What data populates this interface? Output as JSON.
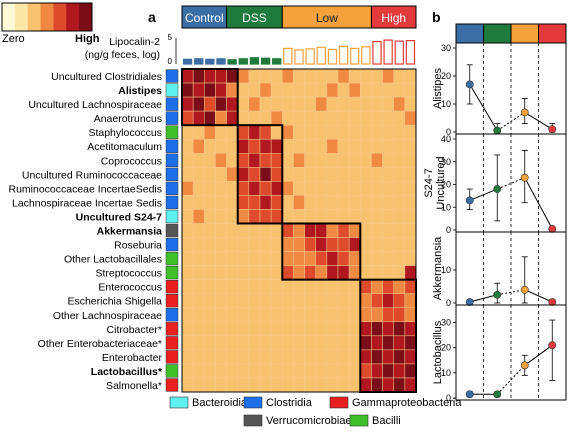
{
  "panel_labels": {
    "a": "a",
    "b": "b"
  },
  "scale": {
    "low_label": "Zero",
    "high_label": "High",
    "colors": [
      "#fffbd8",
      "#fde7a8",
      "#f9c26e",
      "#f08a42",
      "#de4a2c",
      "#b0171f",
      "#7a0d17"
    ]
  },
  "groups": [
    {
      "label": "Control",
      "color": "#3a6ea5",
      "text_color": "#ffffff",
      "n": 4
    },
    {
      "label": "DSS",
      "color": "#1f7a3c",
      "text_color": "#ffffff",
      "n": 5
    },
    {
      "label": "Low",
      "color": "#f5a23c",
      "text_color": "#222222",
      "n": 8
    },
    {
      "label": "High",
      "color": "#e33b3b",
      "text_color": "#ffffff",
      "n": 4
    }
  ],
  "lipocalin": {
    "label_line1": "Lipocalin-2",
    "label_line2": "(ng/g feces, log)",
    "ticks": [
      "0",
      "5"
    ],
    "values": [
      0.9,
      1.0,
      0.9,
      1.0,
      0.8,
      1.0,
      1.2,
      1.1,
      1.0,
      3.0,
      2.7,
      2.9,
      3.2,
      2.8,
      3.4,
      3.0,
      3.3,
      4.3,
      4.6,
      4.4,
      4.5
    ],
    "max": 5
  },
  "taxa_colors": {
    "Bacteroidia": "#5ff0f0",
    "Clostridia": "#1d6fe8",
    "Gammaproteobacteria": "#e8201f",
    "Verrucomicrobiae": "#555555",
    "Bacilli": "#3fbf2a"
  },
  "rows": [
    {
      "name": "Uncultured Clostridiales",
      "bold": false,
      "class": "Clostridia"
    },
    {
      "name": "Alistipes",
      "bold": true,
      "class": "Bacteroidia"
    },
    {
      "name": "Uncultured Lachnospiraceae",
      "bold": false,
      "class": "Clostridia"
    },
    {
      "name": "Anaerotruncus",
      "bold": false,
      "class": "Clostridia"
    },
    {
      "name": "Staphylococcus",
      "bold": false,
      "class": "Bacilli"
    },
    {
      "name": "Acetitomaculum",
      "bold": false,
      "class": "Clostridia"
    },
    {
      "name": "Coprococcus",
      "bold": false,
      "class": "Clostridia"
    },
    {
      "name": "Uncultured Ruminococcaceae",
      "bold": false,
      "class": "Clostridia"
    },
    {
      "name": "Ruminococcaceae IncertaeSedis",
      "bold": false,
      "class": "Clostridia"
    },
    {
      "name": "Lachnospiraceae Incertae Sedis",
      "bold": false,
      "class": "Clostridia"
    },
    {
      "name": "Uncultured S24-7",
      "bold": true,
      "class": "Bacteroidia"
    },
    {
      "name": "Akkermansia",
      "bold": true,
      "class": "Verrucomicrobiae"
    },
    {
      "name": "Roseburia",
      "bold": false,
      "class": "Clostridia"
    },
    {
      "name": "Other Lactobacillales",
      "bold": false,
      "class": "Bacilli"
    },
    {
      "name": "Streptococcus",
      "bold": false,
      "class": "Bacilli"
    },
    {
      "name": "Enterococcus",
      "bold": false,
      "class": "Gammaproteobacteria"
    },
    {
      "name": "Escherichia Shigella",
      "bold": false,
      "class": "Gammaproteobacteria"
    },
    {
      "name": "Other Lachnospiraceae",
      "bold": false,
      "class": "Clostridia"
    },
    {
      "name": "Citrobacter*",
      "bold": false,
      "class": "Gammaproteobacteria"
    },
    {
      "name": "Other Enterobacteriaceae*",
      "bold": false,
      "class": "Gammaproteobacteria"
    },
    {
      "name": "Enterobacter",
      "bold": false,
      "class": "Gammaproteobacteria"
    },
    {
      "name": "Lactobacillus*",
      "bold": true,
      "class": "Bacilli"
    },
    {
      "name": "Salmonella*",
      "bold": false,
      "class": "Gammaproteobacteria"
    }
  ],
  "legend": [
    {
      "label": "Bacteroidia",
      "class": "Bacteroidia"
    },
    {
      "label": "Clostridia",
      "class": "Clostridia"
    },
    {
      "label": "Gammaproteobacteria",
      "class": "Gammaproteobacteria"
    },
    {
      "label": "Verrucomicrobiae",
      "class": "Verrucomicrobiae"
    },
    {
      "label": "Bacilli",
      "class": "Bacilli"
    }
  ],
  "chart_data": [
    {
      "type": "heatmap",
      "rows": [
        "Uncultured Clostridiales",
        "Alistipes",
        "Uncultured Lachnospiraceae",
        "Anaerotruncus",
        "Staphylococcus",
        "Acetitomaculum",
        "Coprococcus",
        "Uncultured Ruminococcaceae",
        "Ruminococcaceae IncertaeSedis",
        "Lachnospiraceae Incertae Sedis",
        "Uncultured S24-7",
        "Akkermansia",
        "Roseburia",
        "Other Lactobacillales",
        "Streptococcus",
        "Enterococcus",
        "Escherichia Shigella",
        "Other Lachnospiraceae",
        "Citrobacter*",
        "Other Enterobacteriaceae*",
        "Enterobacter",
        "Lactobacillus*",
        "Salmonella*"
      ],
      "columns": 21,
      "blocks": [
        {
          "rows": [
            0,
            3
          ],
          "cols": [
            0,
            4
          ]
        },
        {
          "rows": [
            4,
            10
          ],
          "cols": [
            5,
            8
          ]
        },
        {
          "rows": [
            11,
            14
          ],
          "cols": [
            9,
            15
          ]
        },
        {
          "rows": [
            15,
            22
          ],
          "cols": [
            16,
            20
          ]
        }
      ],
      "values": [
        [
          5,
          6,
          5,
          5,
          6,
          3,
          2,
          2,
          2,
          3,
          2,
          2,
          2,
          2,
          3,
          2,
          2,
          2,
          3,
          2,
          2
        ],
        [
          6,
          5,
          6,
          5,
          3,
          2,
          2,
          3,
          2,
          2,
          2,
          2,
          2,
          3,
          2,
          3,
          2,
          2,
          2,
          2,
          2
        ],
        [
          5,
          6,
          4,
          6,
          5,
          2,
          3,
          2,
          2,
          2,
          2,
          2,
          3,
          2,
          2,
          2,
          2,
          2,
          2,
          3,
          2
        ],
        [
          4,
          5,
          6,
          3,
          5,
          2,
          2,
          2,
          3,
          2,
          2,
          2,
          2,
          2,
          2,
          2,
          2,
          2,
          2,
          2,
          3
        ],
        [
          2,
          2,
          3,
          2,
          2,
          4,
          5,
          4,
          2,
          3,
          2,
          2,
          2,
          2,
          2,
          2,
          2,
          2,
          2,
          2,
          2
        ],
        [
          2,
          3,
          2,
          2,
          2,
          5,
          4,
          5,
          5,
          2,
          2,
          2,
          2,
          3,
          2,
          2,
          2,
          2,
          2,
          2,
          2
        ],
        [
          2,
          2,
          2,
          3,
          2,
          4,
          5,
          4,
          4,
          2,
          3,
          2,
          2,
          2,
          2,
          2,
          2,
          3,
          2,
          2,
          2
        ],
        [
          2,
          2,
          2,
          2,
          3,
          5,
          4,
          6,
          4,
          2,
          2,
          2,
          2,
          2,
          2,
          2,
          2,
          2,
          2,
          2,
          2
        ],
        [
          3,
          2,
          2,
          2,
          2,
          4,
          5,
          4,
          5,
          3,
          2,
          2,
          2,
          2,
          2,
          2,
          2,
          2,
          2,
          2,
          2
        ],
        [
          2,
          2,
          2,
          2,
          2,
          4,
          4,
          5,
          4,
          2,
          3,
          2,
          2,
          2,
          2,
          2,
          2,
          2,
          2,
          2,
          2
        ],
        [
          2,
          3,
          2,
          2,
          2,
          3,
          4,
          4,
          4,
          2,
          2,
          2,
          2,
          2,
          2,
          2,
          2,
          2,
          2,
          2,
          2
        ],
        [
          2,
          2,
          2,
          2,
          2,
          2,
          2,
          2,
          2,
          4,
          3,
          5,
          5,
          3,
          4,
          3,
          2,
          2,
          2,
          2,
          2
        ],
        [
          2,
          2,
          2,
          2,
          2,
          2,
          2,
          2,
          2,
          3,
          3,
          4,
          5,
          4,
          4,
          5,
          2,
          2,
          2,
          2,
          2
        ],
        [
          2,
          2,
          2,
          2,
          2,
          2,
          2,
          2,
          2,
          3,
          3,
          3,
          4,
          5,
          4,
          3,
          2,
          2,
          2,
          2,
          2
        ],
        [
          2,
          2,
          2,
          2,
          2,
          2,
          2,
          2,
          2,
          4,
          3,
          4,
          3,
          5,
          5,
          3,
          2,
          2,
          2,
          2,
          5
        ],
        [
          2,
          2,
          2,
          2,
          2,
          2,
          2,
          2,
          2,
          2,
          2,
          2,
          2,
          2,
          2,
          2,
          4,
          3,
          4,
          3,
          4
        ],
        [
          2,
          2,
          2,
          2,
          2,
          2,
          2,
          2,
          2,
          2,
          2,
          2,
          2,
          2,
          2,
          2,
          3,
          4,
          5,
          4,
          3
        ],
        [
          2,
          2,
          2,
          2,
          2,
          2,
          2,
          2,
          2,
          2,
          2,
          2,
          2,
          2,
          2,
          2,
          3,
          3,
          4,
          4,
          3
        ],
        [
          2,
          2,
          2,
          2,
          2,
          2,
          2,
          2,
          2,
          2,
          2,
          2,
          2,
          2,
          2,
          2,
          5,
          6,
          5,
          6,
          5
        ],
        [
          2,
          2,
          2,
          2,
          2,
          2,
          2,
          2,
          2,
          2,
          2,
          2,
          2,
          2,
          2,
          2,
          6,
          5,
          6,
          5,
          6
        ],
        [
          2,
          2,
          2,
          2,
          2,
          2,
          2,
          2,
          2,
          2,
          2,
          2,
          2,
          2,
          2,
          2,
          5,
          6,
          5,
          6,
          5
        ],
        [
          2,
          2,
          2,
          2,
          2,
          2,
          2,
          2,
          2,
          2,
          2,
          2,
          2,
          2,
          2,
          2,
          4,
          5,
          6,
          5,
          6
        ],
        [
          2,
          2,
          2,
          2,
          2,
          2,
          2,
          2,
          2,
          2,
          2,
          2,
          2,
          2,
          2,
          2,
          5,
          6,
          5,
          6,
          5
        ]
      ]
    },
    {
      "type": "bar",
      "ylabel": "Lipocalin-2 (ng/g feces, log)",
      "ylim": [
        0,
        5
      ],
      "values": [
        0.9,
        1.0,
        0.9,
        1.0,
        0.8,
        1.0,
        1.2,
        1.1,
        1.0,
        3.0,
        2.7,
        2.9,
        3.2,
        2.8,
        3.4,
        3.0,
        3.3,
        4.3,
        4.6,
        4.4,
        4.5
      ]
    },
    {
      "type": "line",
      "groups": [
        "Control",
        "DSS",
        "Low",
        "High"
      ],
      "panels": [
        {
          "ylabel": "Alistipes",
          "ylim": [
            0,
            30
          ],
          "yticks": [
            0,
            10,
            20,
            30
          ],
          "values": [
            17,
            0.5,
            7,
            1
          ],
          "err_low": [
            10,
            0,
            3,
            0
          ],
          "err_high": [
            24,
            3,
            12,
            3
          ]
        },
        {
          "ylabel": "S24-7 Uncultured",
          "ylim": [
            0,
            40
          ],
          "yticks": [
            0,
            10,
            20,
            30,
            40
          ],
          "values": [
            13,
            18,
            23,
            0.5
          ],
          "err_low": [
            9,
            4,
            12,
            0
          ],
          "err_high": [
            18,
            33,
            35,
            1
          ]
        },
        {
          "ylabel": "Akkermansia",
          "ylim": [
            0,
            20
          ],
          "yticks": [
            0,
            10
          ],
          "values": [
            0.3,
            2.5,
            4,
            0.3
          ],
          "err_low": [
            0,
            0,
            0,
            0
          ],
          "err_high": [
            1,
            6,
            14,
            1
          ]
        },
        {
          "ylabel": "Lactobacillus",
          "ylim": [
            0,
            35
          ],
          "yticks": [
            0,
            10,
            20,
            30
          ],
          "values": [
            1.5,
            1.5,
            13,
            21
          ],
          "err_low": [
            0.5,
            0.5,
            9,
            7
          ],
          "err_high": [
            2.5,
            2.5,
            17,
            31
          ]
        }
      ]
    }
  ]
}
